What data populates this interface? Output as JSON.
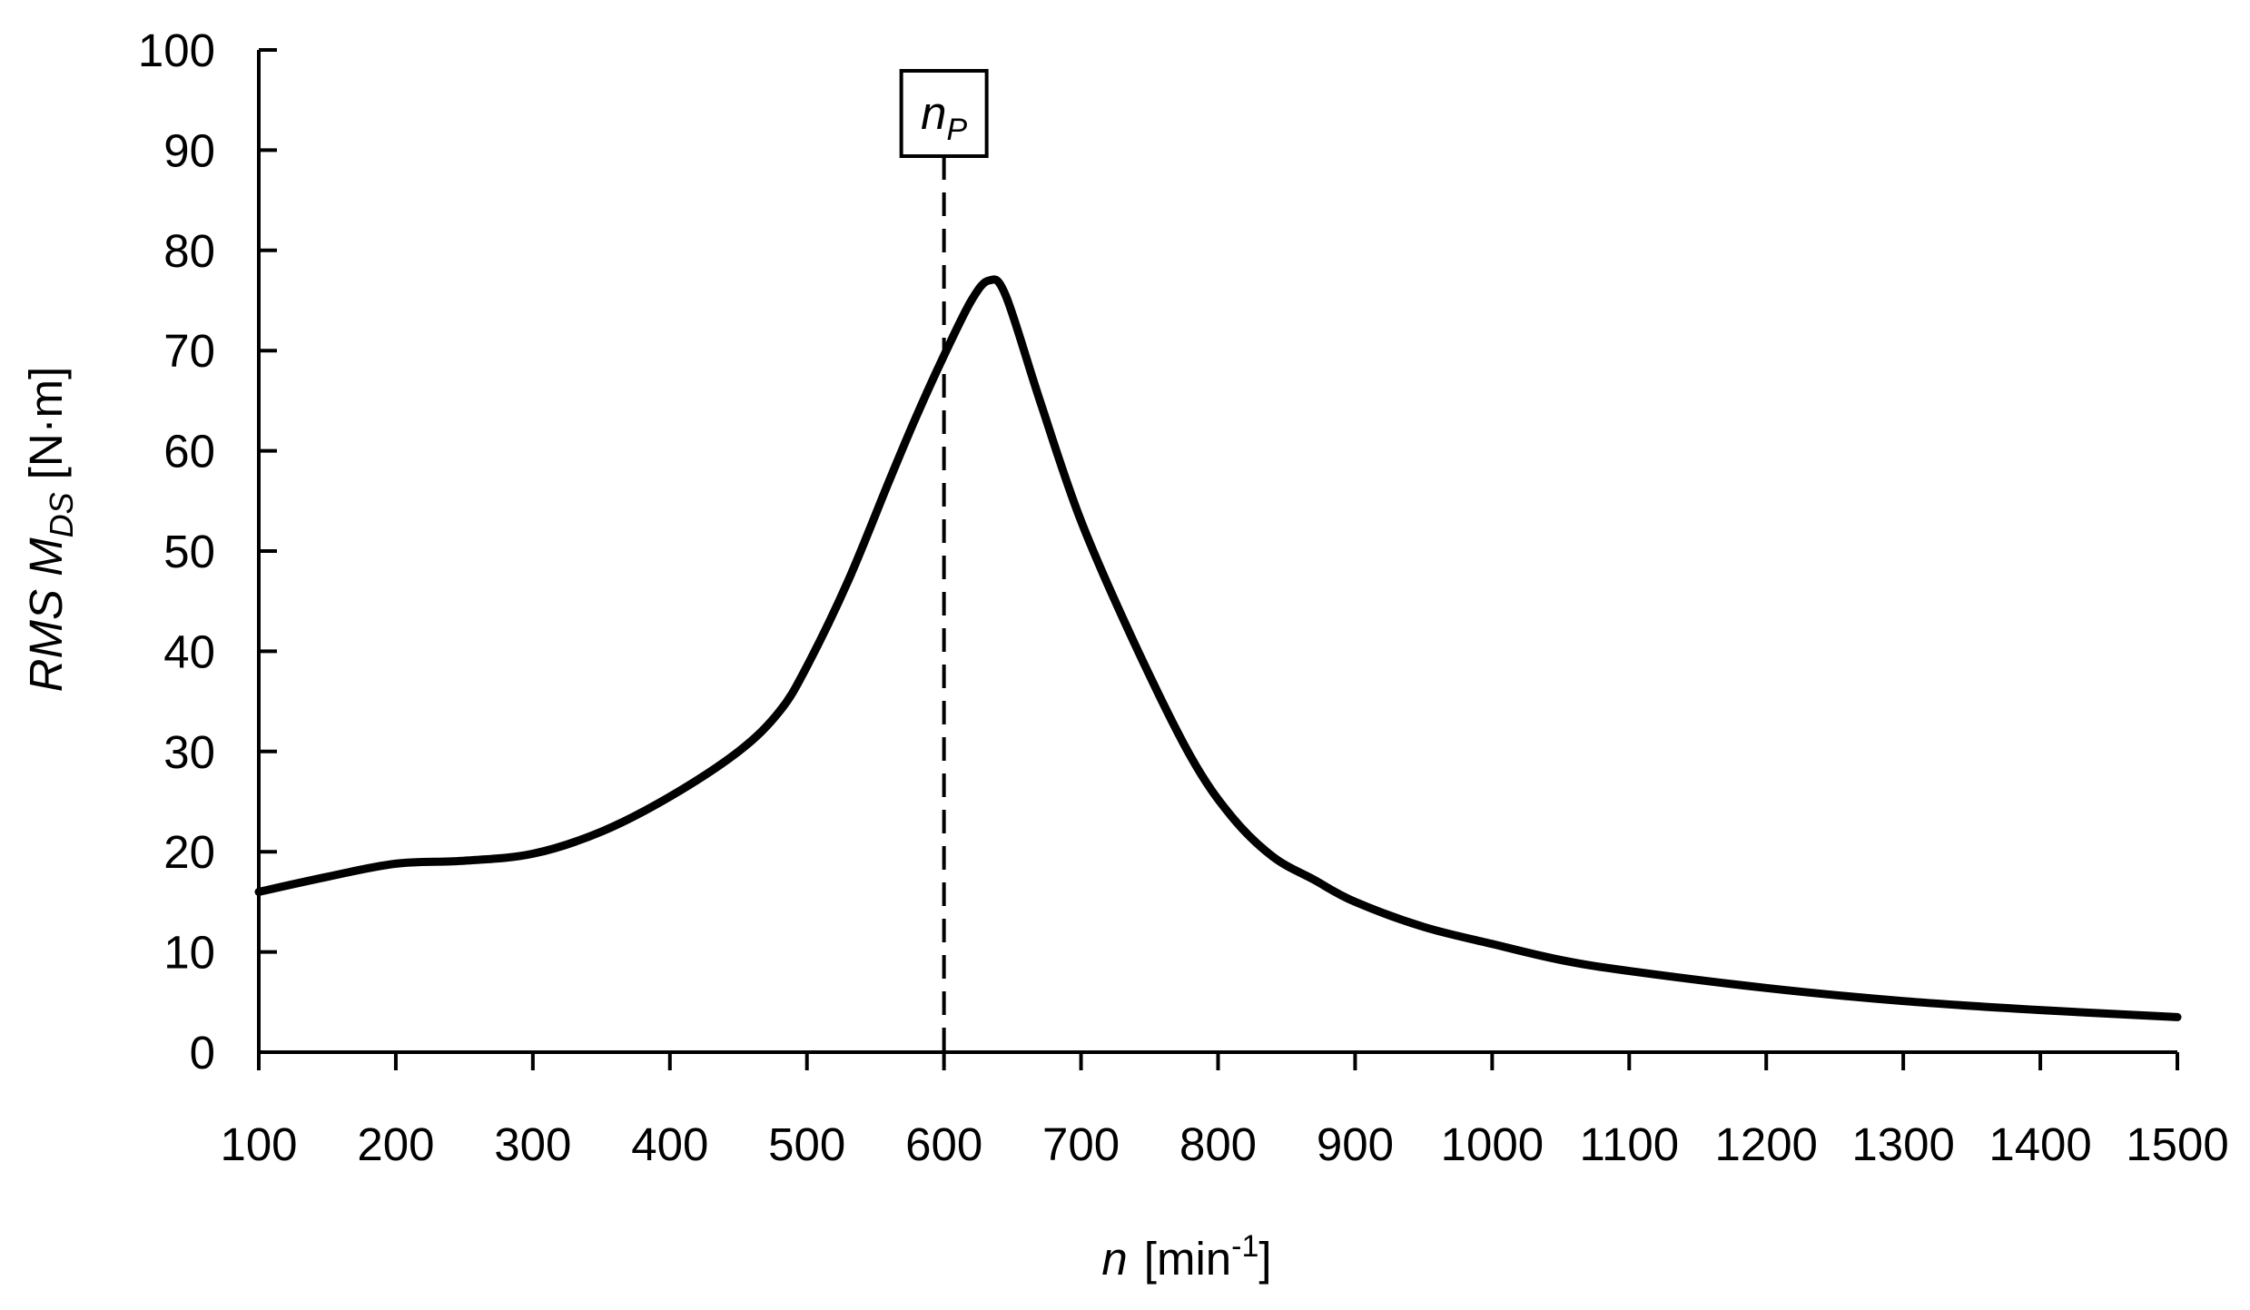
{
  "chart_data": {
    "type": "line",
    "title": "",
    "xlabel": {
      "symbol": "n",
      "unit_open": "[min",
      "unit_exp": "-1",
      "unit_close": "]"
    },
    "ylabel": {
      "prefix": "RMS M",
      "subscript": "DS",
      "unit": "[N·m]"
    },
    "xlim": [
      100,
      1500
    ],
    "ylim": [
      0,
      100
    ],
    "xticks": [
      100,
      200,
      300,
      400,
      500,
      600,
      700,
      800,
      900,
      1000,
      1100,
      1200,
      1300,
      1400,
      1500
    ],
    "yticks": [
      0,
      10,
      20,
      30,
      40,
      50,
      60,
      70,
      80,
      90,
      100
    ],
    "grid": false,
    "legend": "none",
    "line_color": "#000000",
    "annotation": {
      "label_main": "n",
      "label_sub": "P",
      "x": 600,
      "style": "dashed vertical line"
    },
    "series": [
      {
        "x": [
          100,
          150,
          200,
          250,
          300,
          350,
          400,
          450,
          480,
          500,
          530,
          560,
          580,
          600,
          620,
          633,
          645,
          670,
          700,
          740,
          780,
          810,
          840,
          870,
          900,
          950,
          1000,
          1050,
          1100,
          1200,
          1300,
          1400,
          1500
        ],
        "y": [
          16,
          17.5,
          18.8,
          19.1,
          19.8,
          22,
          25.5,
          30,
          34,
          38.5,
          47,
          57,
          63.5,
          69.5,
          75,
          77,
          75.5,
          65,
          53,
          40.5,
          29.5,
          23.5,
          19.5,
          17.2,
          15,
          12.5,
          10.8,
          9.2,
          8.1,
          6.4,
          5.1,
          4.2,
          3.5
        ]
      }
    ]
  }
}
